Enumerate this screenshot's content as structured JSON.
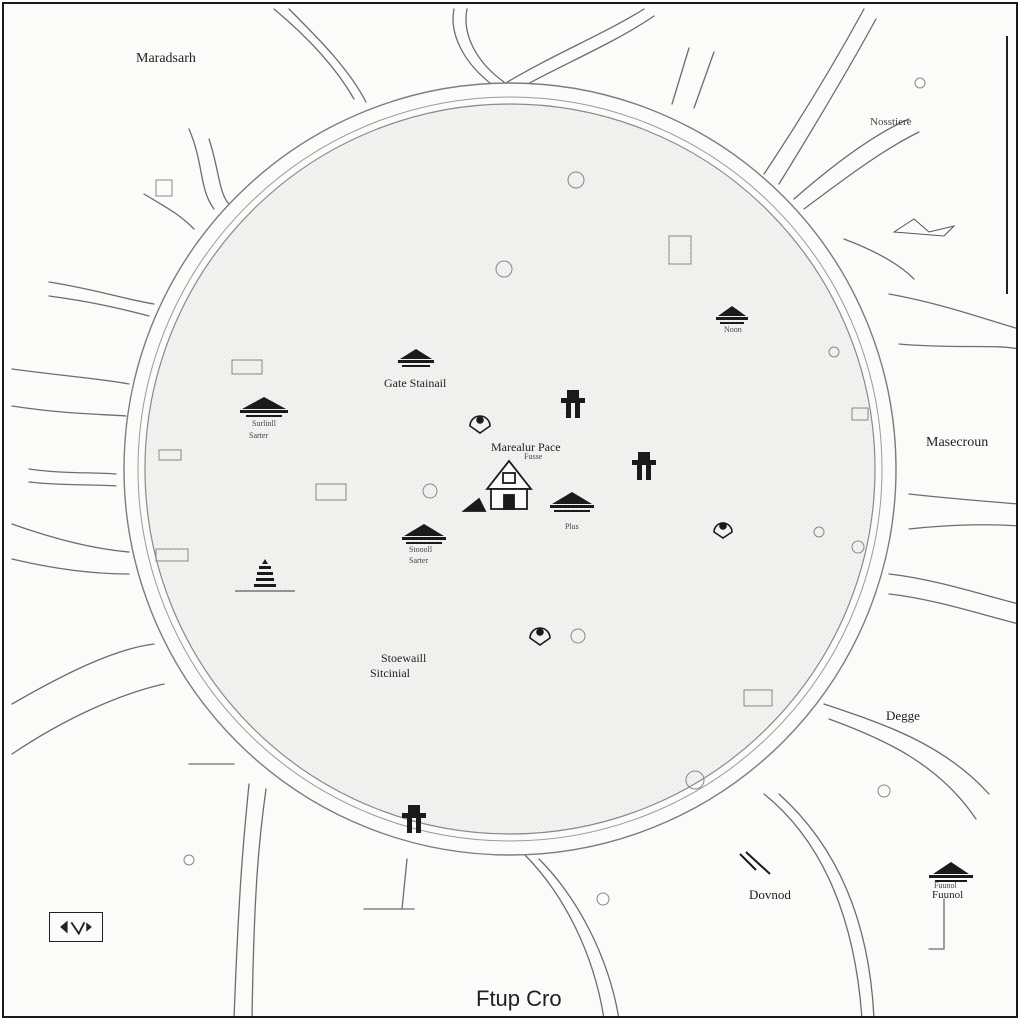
{
  "map": {
    "title": "Ftup Cro",
    "labels": {
      "maradsarh": "Maradsarh",
      "nosstiere": "Nosstiere",
      "masecroun": "Masecroun",
      "degge": "Degge",
      "dovnod": "Dovnod",
      "fuunol": "Fuunol",
      "gate_station": "Gate Stainail",
      "marealur_place": "Marealur Pace",
      "stoewaill": "Stoewaill",
      "sitcinial": "Sitcinial",
      "sarter_a": "Sarter",
      "sarter_b": "Sarter",
      "pagoda_a_sub": "Surlinll",
      "pagoda_b_sub": "Stoooll",
      "pagoda_c_sub": "Noon",
      "pagoda_d_sub": "Plus",
      "pagoda_e_sub": "Fuunol",
      "house_sub": "Fusse"
    },
    "icons": [
      "pagoda-icon",
      "person-icon",
      "pin-icon",
      "house-icon",
      "tower-icon",
      "compass-icon",
      "building-icon"
    ]
  }
}
